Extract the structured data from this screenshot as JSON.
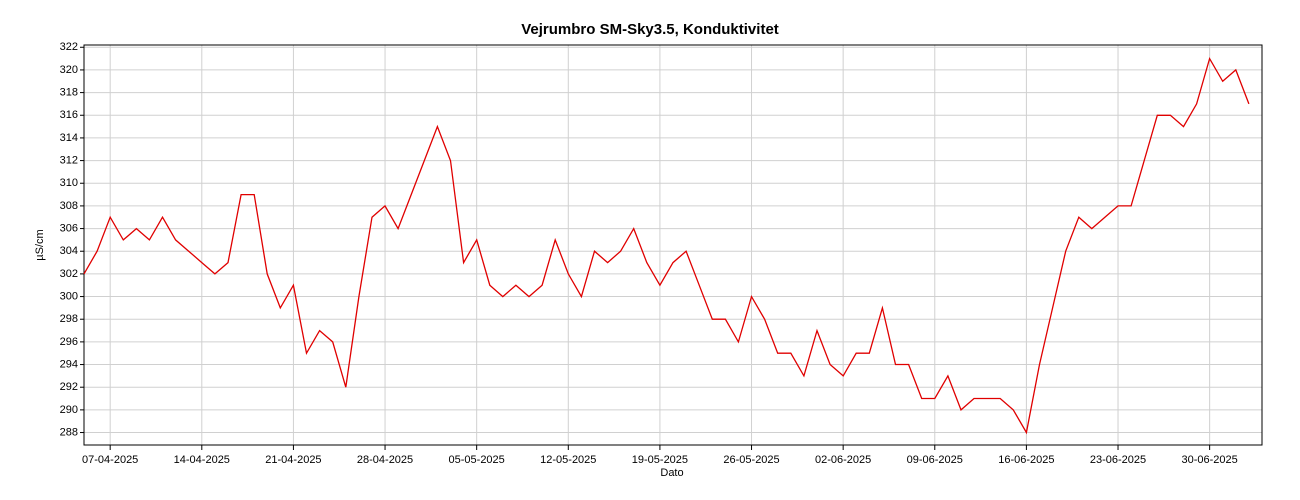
{
  "chart_data": {
    "type": "line",
    "title": "Vejrumbro SM-Sky3.5, Konduktivitet",
    "x_label": "Dato",
    "y_label": "µS/cm",
    "x": [
      "05-04-2025",
      "06-04-2025",
      "07-04-2025",
      "08-04-2025",
      "09-04-2025",
      "10-04-2025",
      "11-04-2025",
      "12-04-2025",
      "13-04-2025",
      "14-04-2025",
      "15-04-2025",
      "16-04-2025",
      "17-04-2025",
      "18-04-2025",
      "19-04-2025",
      "20-04-2025",
      "21-04-2025",
      "22-04-2025",
      "23-04-2025",
      "24-04-2025",
      "25-04-2025",
      "26-04-2025",
      "27-04-2025",
      "28-04-2025",
      "29-04-2025",
      "30-04-2025",
      "01-05-2025",
      "02-05-2025",
      "03-05-2025",
      "04-05-2025",
      "05-05-2025",
      "06-05-2025",
      "07-05-2025",
      "08-05-2025",
      "09-05-2025",
      "10-05-2025",
      "11-05-2025",
      "12-05-2025",
      "13-05-2025",
      "14-05-2025",
      "15-05-2025",
      "16-05-2025",
      "17-05-2025",
      "18-05-2025",
      "19-05-2025",
      "20-05-2025",
      "21-05-2025",
      "22-05-2025",
      "23-05-2025",
      "24-05-2025",
      "25-05-2025",
      "26-05-2025",
      "27-05-2025",
      "28-05-2025",
      "29-05-2025",
      "30-05-2025",
      "31-05-2025",
      "01-06-2025",
      "02-06-2025",
      "03-06-2025",
      "04-06-2025",
      "05-06-2025",
      "06-06-2025",
      "07-06-2025",
      "08-06-2025",
      "09-06-2025",
      "10-06-2025",
      "11-06-2025",
      "12-06-2025",
      "13-06-2025",
      "14-06-2025",
      "15-06-2025",
      "16-06-2025",
      "17-06-2025",
      "18-06-2025",
      "19-06-2025",
      "20-06-2025",
      "21-06-2025",
      "22-06-2025",
      "23-06-2025",
      "24-06-2025",
      "25-06-2025",
      "26-06-2025",
      "27-06-2025",
      "28-06-2025",
      "29-06-2025",
      "30-06-2025",
      "01-07-2025",
      "02-07-2025",
      "03-07-2025"
    ],
    "series": [
      {
        "name": "Konduktivitet",
        "color": "#e00000",
        "values": [
          302,
          304,
          307,
          305,
          306,
          305,
          307,
          305,
          304,
          303,
          302,
          303,
          309,
          309,
          302,
          299,
          301,
          295,
          297,
          296,
          292,
          300,
          307,
          308,
          306,
          309,
          312,
          315,
          312,
          303,
          305,
          301,
          300,
          301,
          300,
          301,
          305,
          302,
          300,
          304,
          303,
          304,
          306,
          303,
          301,
          303,
          304,
          301,
          298,
          298,
          296,
          300,
          298,
          295,
          295,
          293,
          297,
          294,
          293,
          295,
          295,
          299,
          294,
          294,
          291,
          291,
          293,
          290,
          291,
          291,
          291,
          290,
          288,
          294,
          299,
          304,
          307,
          306,
          307,
          308,
          308,
          312,
          316,
          316,
          315,
          317,
          321,
          319,
          320,
          317
        ]
      }
    ],
    "xlim": [
      "05-04-2025",
      "04-07-2025"
    ],
    "xticks": [
      "07-04-2025",
      "14-04-2025",
      "21-04-2025",
      "28-04-2025",
      "05-05-2025",
      "12-05-2025",
      "19-05-2025",
      "26-05-2025",
      "02-06-2025",
      "09-06-2025",
      "16-06-2025",
      "23-06-2025",
      "30-06-2025"
    ],
    "ylim": [
      286.9,
      322.2
    ],
    "yticks": [
      288,
      290,
      292,
      294,
      296,
      298,
      300,
      302,
      304,
      306,
      308,
      310,
      312,
      314,
      316,
      318,
      320,
      322
    ],
    "grid": true
  }
}
